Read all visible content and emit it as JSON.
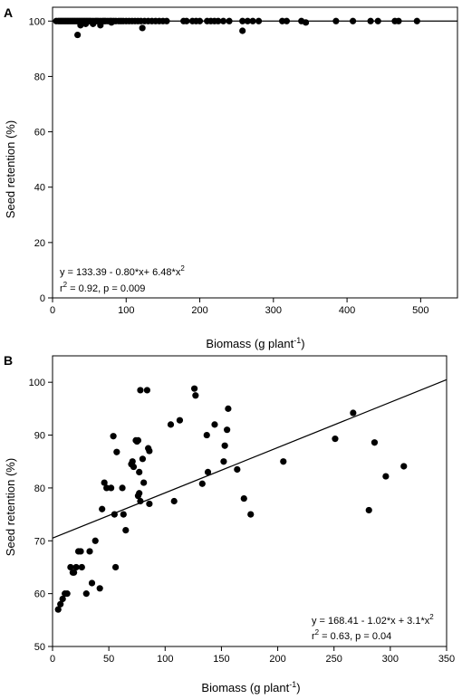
{
  "chart_data": [
    {
      "type": "scatter",
      "panel": "A",
      "xlabel": "Biomass (g plant",
      "xlabel_sup": "-1",
      "xlabel_end": ")",
      "ylabel": "Seed retention (%)",
      "xlim": [
        0,
        550
      ],
      "ylim": [
        0,
        105
      ],
      "xticks": [
        "0",
        "100",
        "200",
        "300",
        "400",
        "500"
      ],
      "yticks": [
        "0",
        "20",
        "40",
        "60",
        "80",
        "100"
      ],
      "equation": {
        "prefix": "y = 133.39 - 0.80*x+ 6.48*x",
        "sup": "2"
      },
      "stats": {
        "r": "r",
        "sup": "2",
        "rest": " = 0.92, p = 0.009"
      },
      "fit": {
        "kind": "line",
        "points": [
          [
            0,
            100
          ],
          [
            550,
            100
          ]
        ]
      },
      "x": [
        5,
        8,
        10,
        12,
        14,
        16,
        18,
        20,
        22,
        24,
        26,
        28,
        30,
        32,
        34,
        36,
        38,
        40,
        42,
        44,
        46,
        48,
        50,
        52,
        55,
        58,
        60,
        62,
        65,
        68,
        70,
        72,
        75,
        78,
        80,
        83,
        86,
        90,
        93,
        96,
        100,
        104,
        108,
        112,
        116,
        120,
        125,
        130,
        135,
        140,
        145,
        150,
        155,
        178,
        182,
        190,
        195,
        200,
        210,
        215,
        220,
        225,
        232,
        240,
        258,
        265,
        272,
        280,
        312,
        318,
        338,
        344,
        385,
        408,
        432,
        442,
        465,
        470,
        495,
        34,
        38,
        45,
        55,
        65,
        80,
        122,
        258
      ],
      "y": [
        100,
        100,
        100,
        100,
        100,
        100,
        100,
        100,
        100,
        100,
        100,
        100,
        100,
        100,
        100,
        100,
        100,
        100,
        100,
        100,
        100,
        100,
        100,
        100,
        100,
        100,
        100,
        100,
        100,
        100,
        100,
        100,
        100,
        100,
        100,
        100,
        100,
        100,
        100,
        100,
        100,
        100,
        100,
        100,
        100,
        100,
        100,
        100,
        100,
        100,
        100,
        100,
        100,
        100,
        100,
        100,
        100,
        100,
        100,
        100,
        100,
        100,
        100,
        100,
        100,
        100,
        100,
        100,
        100,
        100,
        100,
        99.5,
        100,
        100,
        100,
        100,
        100,
        100,
        100,
        95,
        98.5,
        99,
        99,
        98.5,
        99.5,
        97.5,
        96.5
      ]
    },
    {
      "type": "scatter",
      "panel": "B",
      "xlabel": "Biomass (g plant",
      "xlabel_sup": "-1",
      "xlabel_end": ")",
      "ylabel": "Seed retention (%)",
      "xlim": [
        0,
        350
      ],
      "ylim": [
        50,
        105
      ],
      "xticks": [
        "0",
        "50",
        "100",
        "150",
        "200",
        "250",
        "300",
        "350"
      ],
      "yticks": [
        "50",
        "60",
        "70",
        "80",
        "90",
        "100"
      ],
      "equation": {
        "prefix": "y = 168.41 - 1.02*x + 3.1*x",
        "sup": "2"
      },
      "stats": {
        "r": "r",
        "sup": "2",
        "rest": " = 0.63, p = 0.04"
      },
      "fit": {
        "kind": "line",
        "points": [
          [
            0,
            70.5
          ],
          [
            350,
            100.5
          ]
        ]
      },
      "x": [
        5,
        7,
        9,
        11,
        13,
        16,
        18,
        19,
        21,
        23,
        25,
        26,
        30,
        33,
        35,
        38,
        42,
        44,
        46,
        48,
        52,
        54,
        55,
        56,
        57,
        62,
        63,
        65,
        70,
        71,
        72,
        74,
        75,
        76,
        76,
        77,
        77,
        78,
        78,
        80,
        81,
        84,
        85,
        86,
        86,
        105,
        108,
        113,
        126,
        127,
        133,
        137,
        138,
        144,
        152,
        153,
        155,
        156,
        164,
        170,
        176,
        205,
        251,
        267,
        281,
        286,
        296,
        312
      ],
      "y": [
        57,
        58,
        59,
        60,
        60,
        65,
        64,
        64,
        65,
        68,
        68,
        65,
        60,
        68,
        62,
        70,
        61,
        76,
        81,
        80,
        80,
        89.8,
        75,
        65,
        86.8,
        80,
        75,
        72,
        84.5,
        85,
        84,
        89,
        88.8,
        89,
        78.5,
        79,
        83,
        98.5,
        77.5,
        85.5,
        81,
        98.5,
        87.5,
        77,
        87,
        92,
        77.5,
        92.8,
        98.8,
        97.5,
        80.8,
        90,
        83,
        92,
        85,
        88,
        91,
        95,
        83.5,
        78,
        75,
        85,
        89.3,
        94.2,
        75.8,
        88.6,
        82.2,
        84.1
      ]
    }
  ]
}
